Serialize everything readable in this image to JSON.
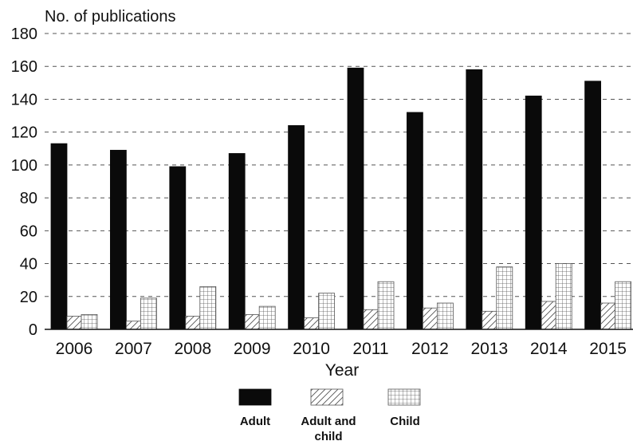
{
  "chart_data": {
    "type": "bar",
    "ylabel": "No. of publications",
    "xlabel": "Year",
    "categories": [
      "2006",
      "2007",
      "2008",
      "2009",
      "2010",
      "2011",
      "2012",
      "2013",
      "2014",
      "2015"
    ],
    "series": [
      {
        "name": "Adult",
        "fill": "solid-black",
        "values": [
          113,
          109,
          99,
          107,
          124,
          159,
          132,
          158,
          142,
          151
        ]
      },
      {
        "name": "Adult and child",
        "fill": "diagonal-hatch",
        "values": [
          8,
          5,
          8,
          9,
          7,
          12,
          13,
          11,
          17,
          16
        ]
      },
      {
        "name": "Child",
        "fill": "grid-hatch",
        "values": [
          9,
          19,
          26,
          14,
          22,
          29,
          16,
          38,
          40,
          29
        ]
      }
    ],
    "ylim": [
      0,
      180
    ],
    "yticks": [
      "0",
      "20",
      "40",
      "60",
      "80",
      "100",
      "120",
      "140",
      "160",
      "180"
    ],
    "grid": "horizontal-dashed",
    "legend_position": "bottom-center",
    "legend": [
      "Adult",
      "Adult and child",
      "Child"
    ]
  },
  "colors": {
    "bar_dark": "#0a0a0a",
    "hatch_line": "#555555",
    "axis": "#111111",
    "grid": "#555555"
  }
}
